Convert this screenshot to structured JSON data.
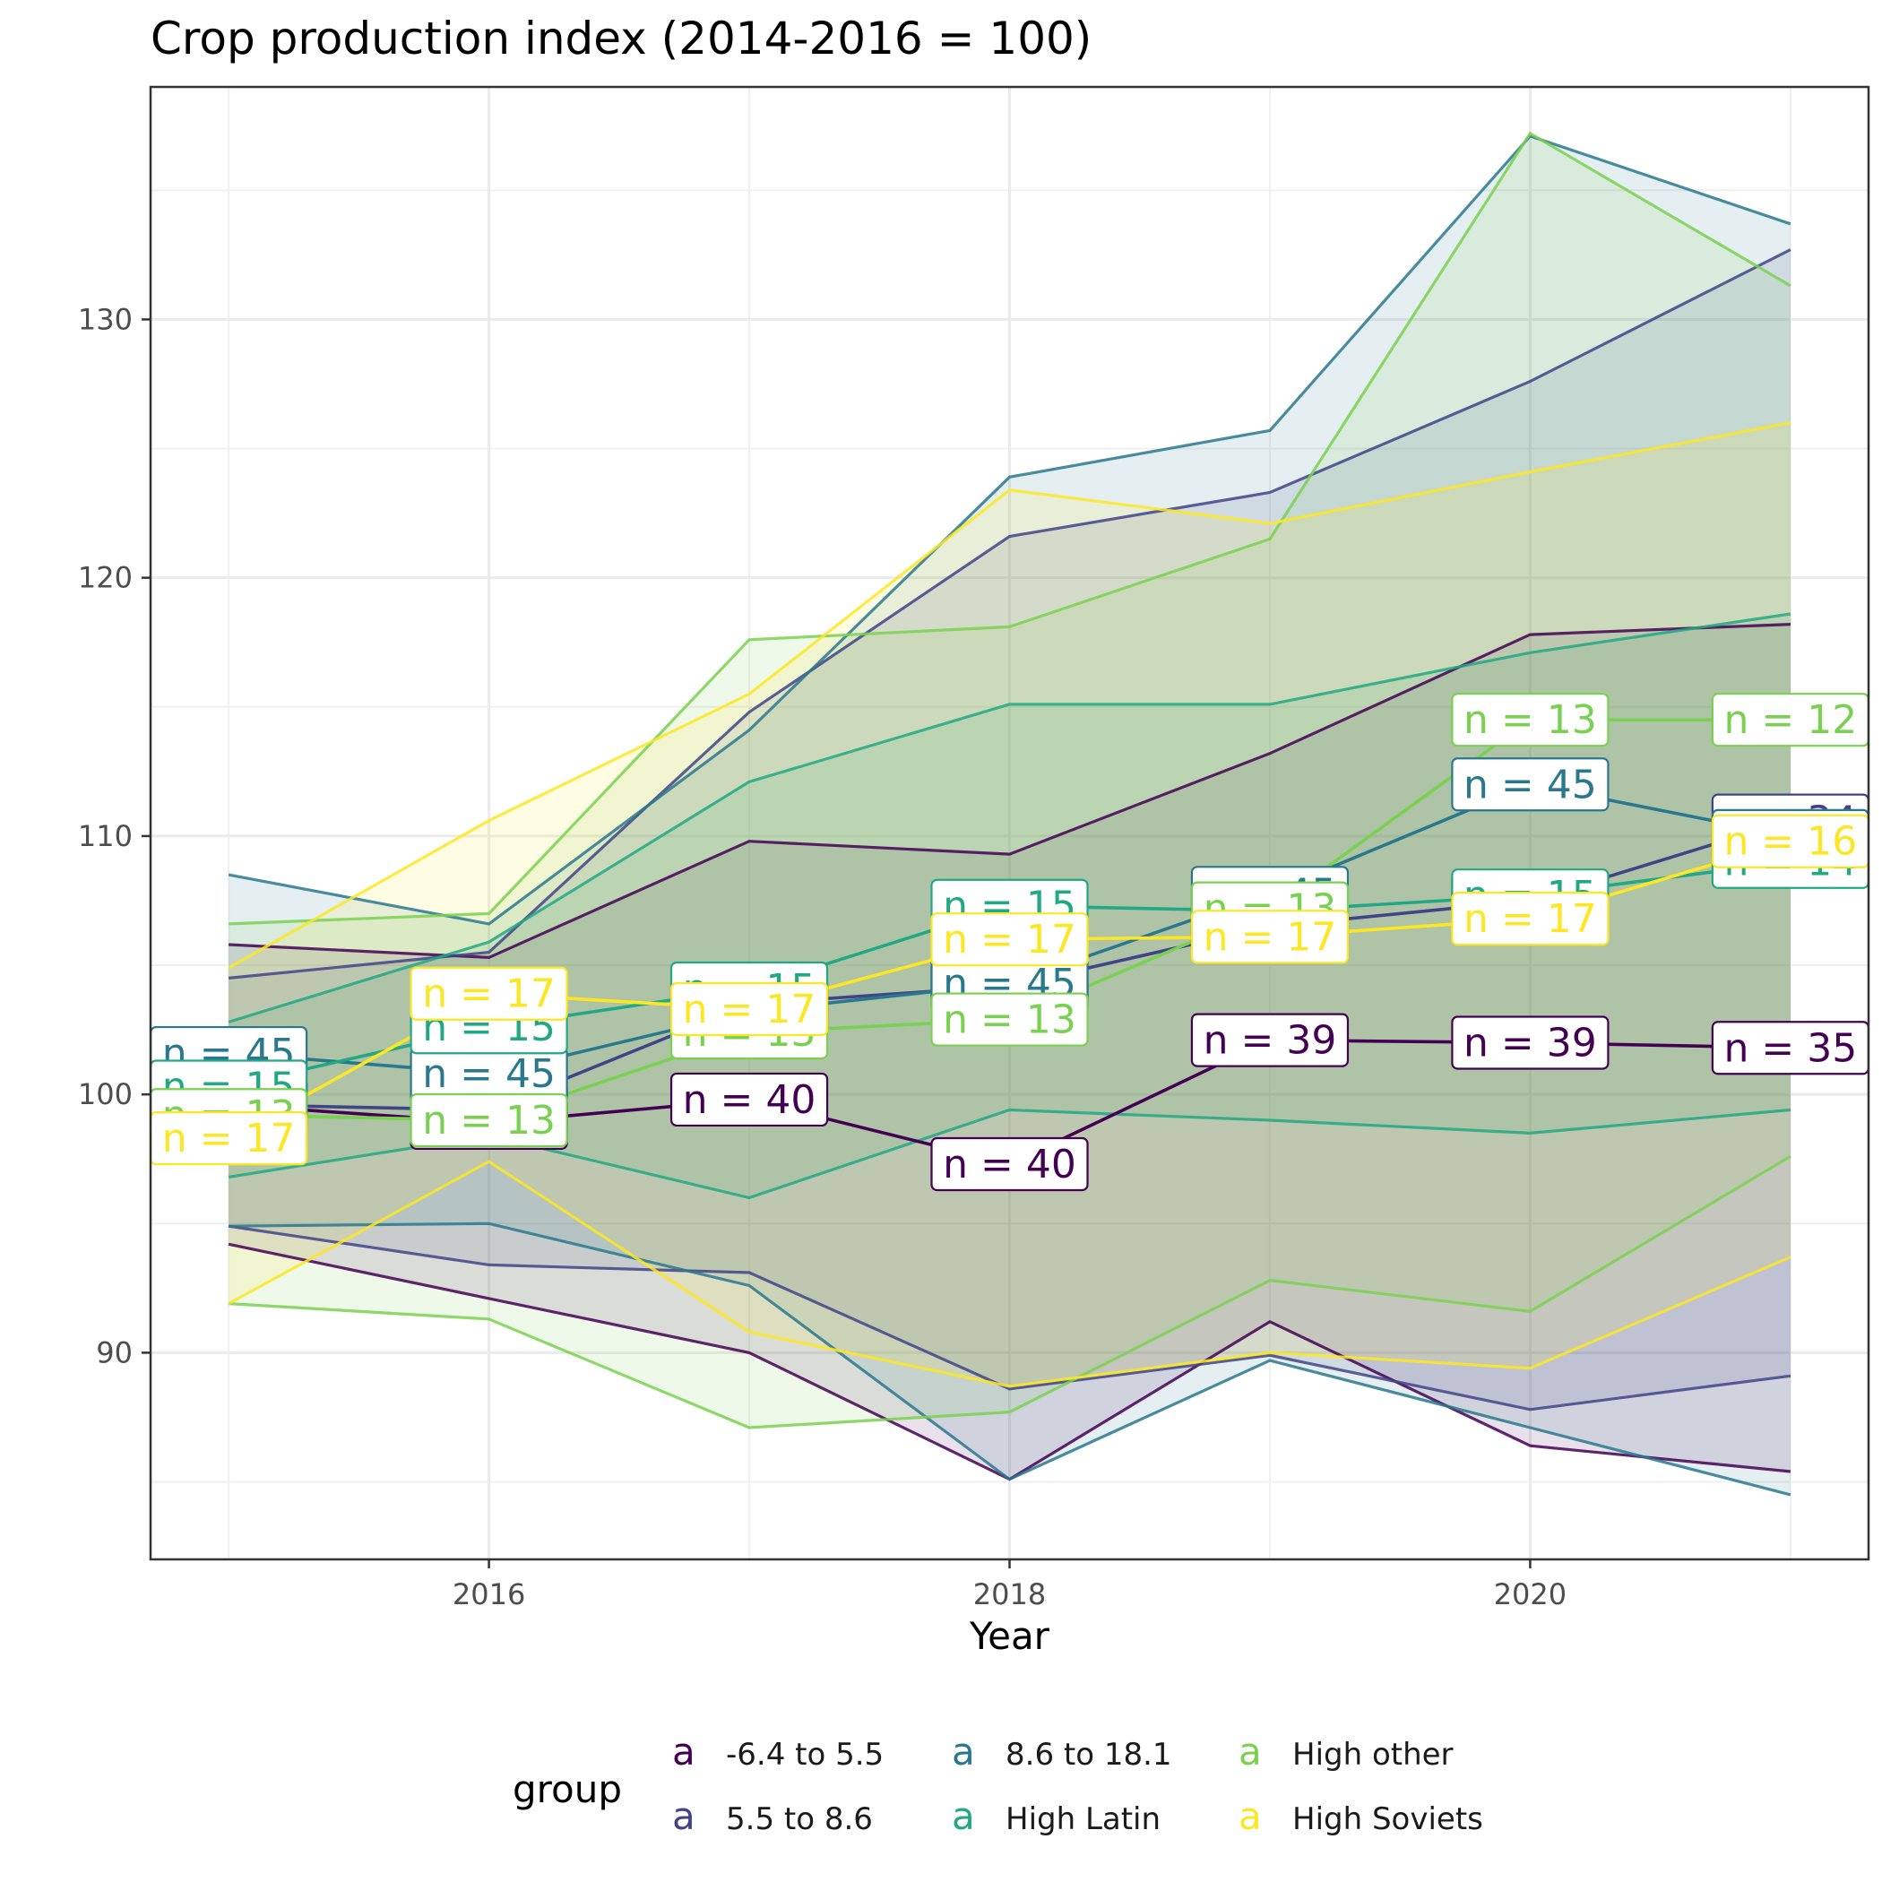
{
  "title": "Crop production index (2014-2016 = 100)",
  "chart_data": {
    "type": "line",
    "title": "Crop production index (2014-2016 = 100)",
    "xlabel": "Year",
    "ylabel": "",
    "x": [
      2015,
      2016,
      2017,
      2018,
      2019,
      2020,
      2021
    ],
    "xticks": [
      2016,
      2018,
      2020
    ],
    "yticks": [
      90,
      100,
      110,
      120,
      130
    ],
    "xlim": [
      2014.7,
      2021.3
    ],
    "ylim": [
      82,
      139
    ],
    "grid": true,
    "legend_position": "bottom",
    "legend_title": "group",
    "legend_key_glyph": "a",
    "series": [
      {
        "name": "-6.4 to 5.5",
        "color": "#440154",
        "median": [
          99.6,
          98.9,
          99.8,
          97.3,
          102.1,
          102.0,
          101.8
        ],
        "upper": [
          105.8,
          105.3,
          109.8,
          109.3,
          113.2,
          117.8,
          118.2
        ],
        "lower": [
          94.2,
          92.1,
          90.0,
          85.1,
          91.2,
          86.4,
          85.4
        ],
        "n_labels": [
          "n = 40",
          "n = 40",
          "n = 40",
          "n = 40",
          "n = 39",
          "n = 39",
          "n = 35"
        ]
      },
      {
        "name": "5.5 to 8.6",
        "color": "#414487",
        "median": [
          99.6,
          99.4,
          103.5,
          104.2,
          106.5,
          107.5,
          110.6
        ],
        "upper": [
          104.5,
          105.5,
          114.8,
          121.6,
          123.3,
          127.6,
          132.7
        ],
        "lower": [
          94.9,
          93.4,
          93.1,
          88.6,
          89.9,
          87.8,
          89.1
        ],
        "n_labels": [
          "n = 34",
          "n = 34",
          "n = 34",
          "n = 34",
          "n = 34",
          "n = 34",
          "n = 34"
        ]
      },
      {
        "name": "8.6 to 18.1",
        "color": "#2A788E",
        "median": [
          101.6,
          100.8,
          103.2,
          104.3,
          107.8,
          112.0,
          110.0
        ],
        "upper": [
          108.5,
          106.6,
          114.1,
          123.9,
          125.7,
          137.1,
          133.7
        ],
        "lower": [
          94.9,
          95.0,
          92.6,
          85.1,
          89.7,
          87.1,
          84.5
        ],
        "n_labels": [
          "n = 45",
          "n = 45",
          "n = 45",
          "n = 45",
          "n = 45",
          "n = 45",
          "n = 45"
        ]
      },
      {
        "name": "High Latin",
        "color": "#22A884",
        "median": [
          100.3,
          102.6,
          104.1,
          107.3,
          107.1,
          107.7,
          109.0
        ],
        "upper": [
          102.8,
          105.9,
          112.1,
          115.1,
          115.1,
          117.1,
          118.6
        ],
        "lower": [
          96.8,
          98.4,
          96.0,
          99.4,
          99.0,
          98.5,
          99.4
        ],
        "n_labels": [
          "n = 15",
          "n = 15",
          "n = 15",
          "n = 15",
          "n = 15",
          "n = 15",
          "n = 14"
        ]
      },
      {
        "name": "High other",
        "color": "#7AD151",
        "median": [
          99.2,
          99.0,
          102.4,
          102.9,
          107.2,
          114.5,
          114.5
        ],
        "upper": [
          106.6,
          107.0,
          117.6,
          118.1,
          121.5,
          137.2,
          131.3
        ],
        "lower": [
          91.9,
          91.3,
          87.1,
          87.7,
          92.8,
          91.6,
          97.6
        ],
        "n_labels": [
          "n = 13",
          "n = 13",
          "n = 13",
          "n = 13",
          "n = 13",
          "n = 13",
          "n = 12"
        ]
      },
      {
        "name": "High Soviets",
        "color": "#FDE725",
        "median": [
          98.3,
          103.9,
          103.3,
          106.0,
          106.1,
          106.8,
          109.8
        ],
        "upper": [
          104.9,
          110.6,
          115.5,
          123.4,
          122.1,
          124.1,
          126.0
        ],
        "lower": [
          91.9,
          97.4,
          90.8,
          88.7,
          90.0,
          89.4,
          93.7
        ],
        "n_labels": [
          "n = 17",
          "n = 17",
          "n = 17",
          "n = 17",
          "n = 17",
          "n = 17",
          "n = 16"
        ]
      }
    ]
  },
  "legend": {
    "title": "group",
    "key_glyph": "a",
    "items": [
      "-6.4 to 5.5",
      "5.5 to 8.6",
      "8.6 to 18.1",
      "High Latin",
      "High other",
      "High Soviets"
    ]
  }
}
